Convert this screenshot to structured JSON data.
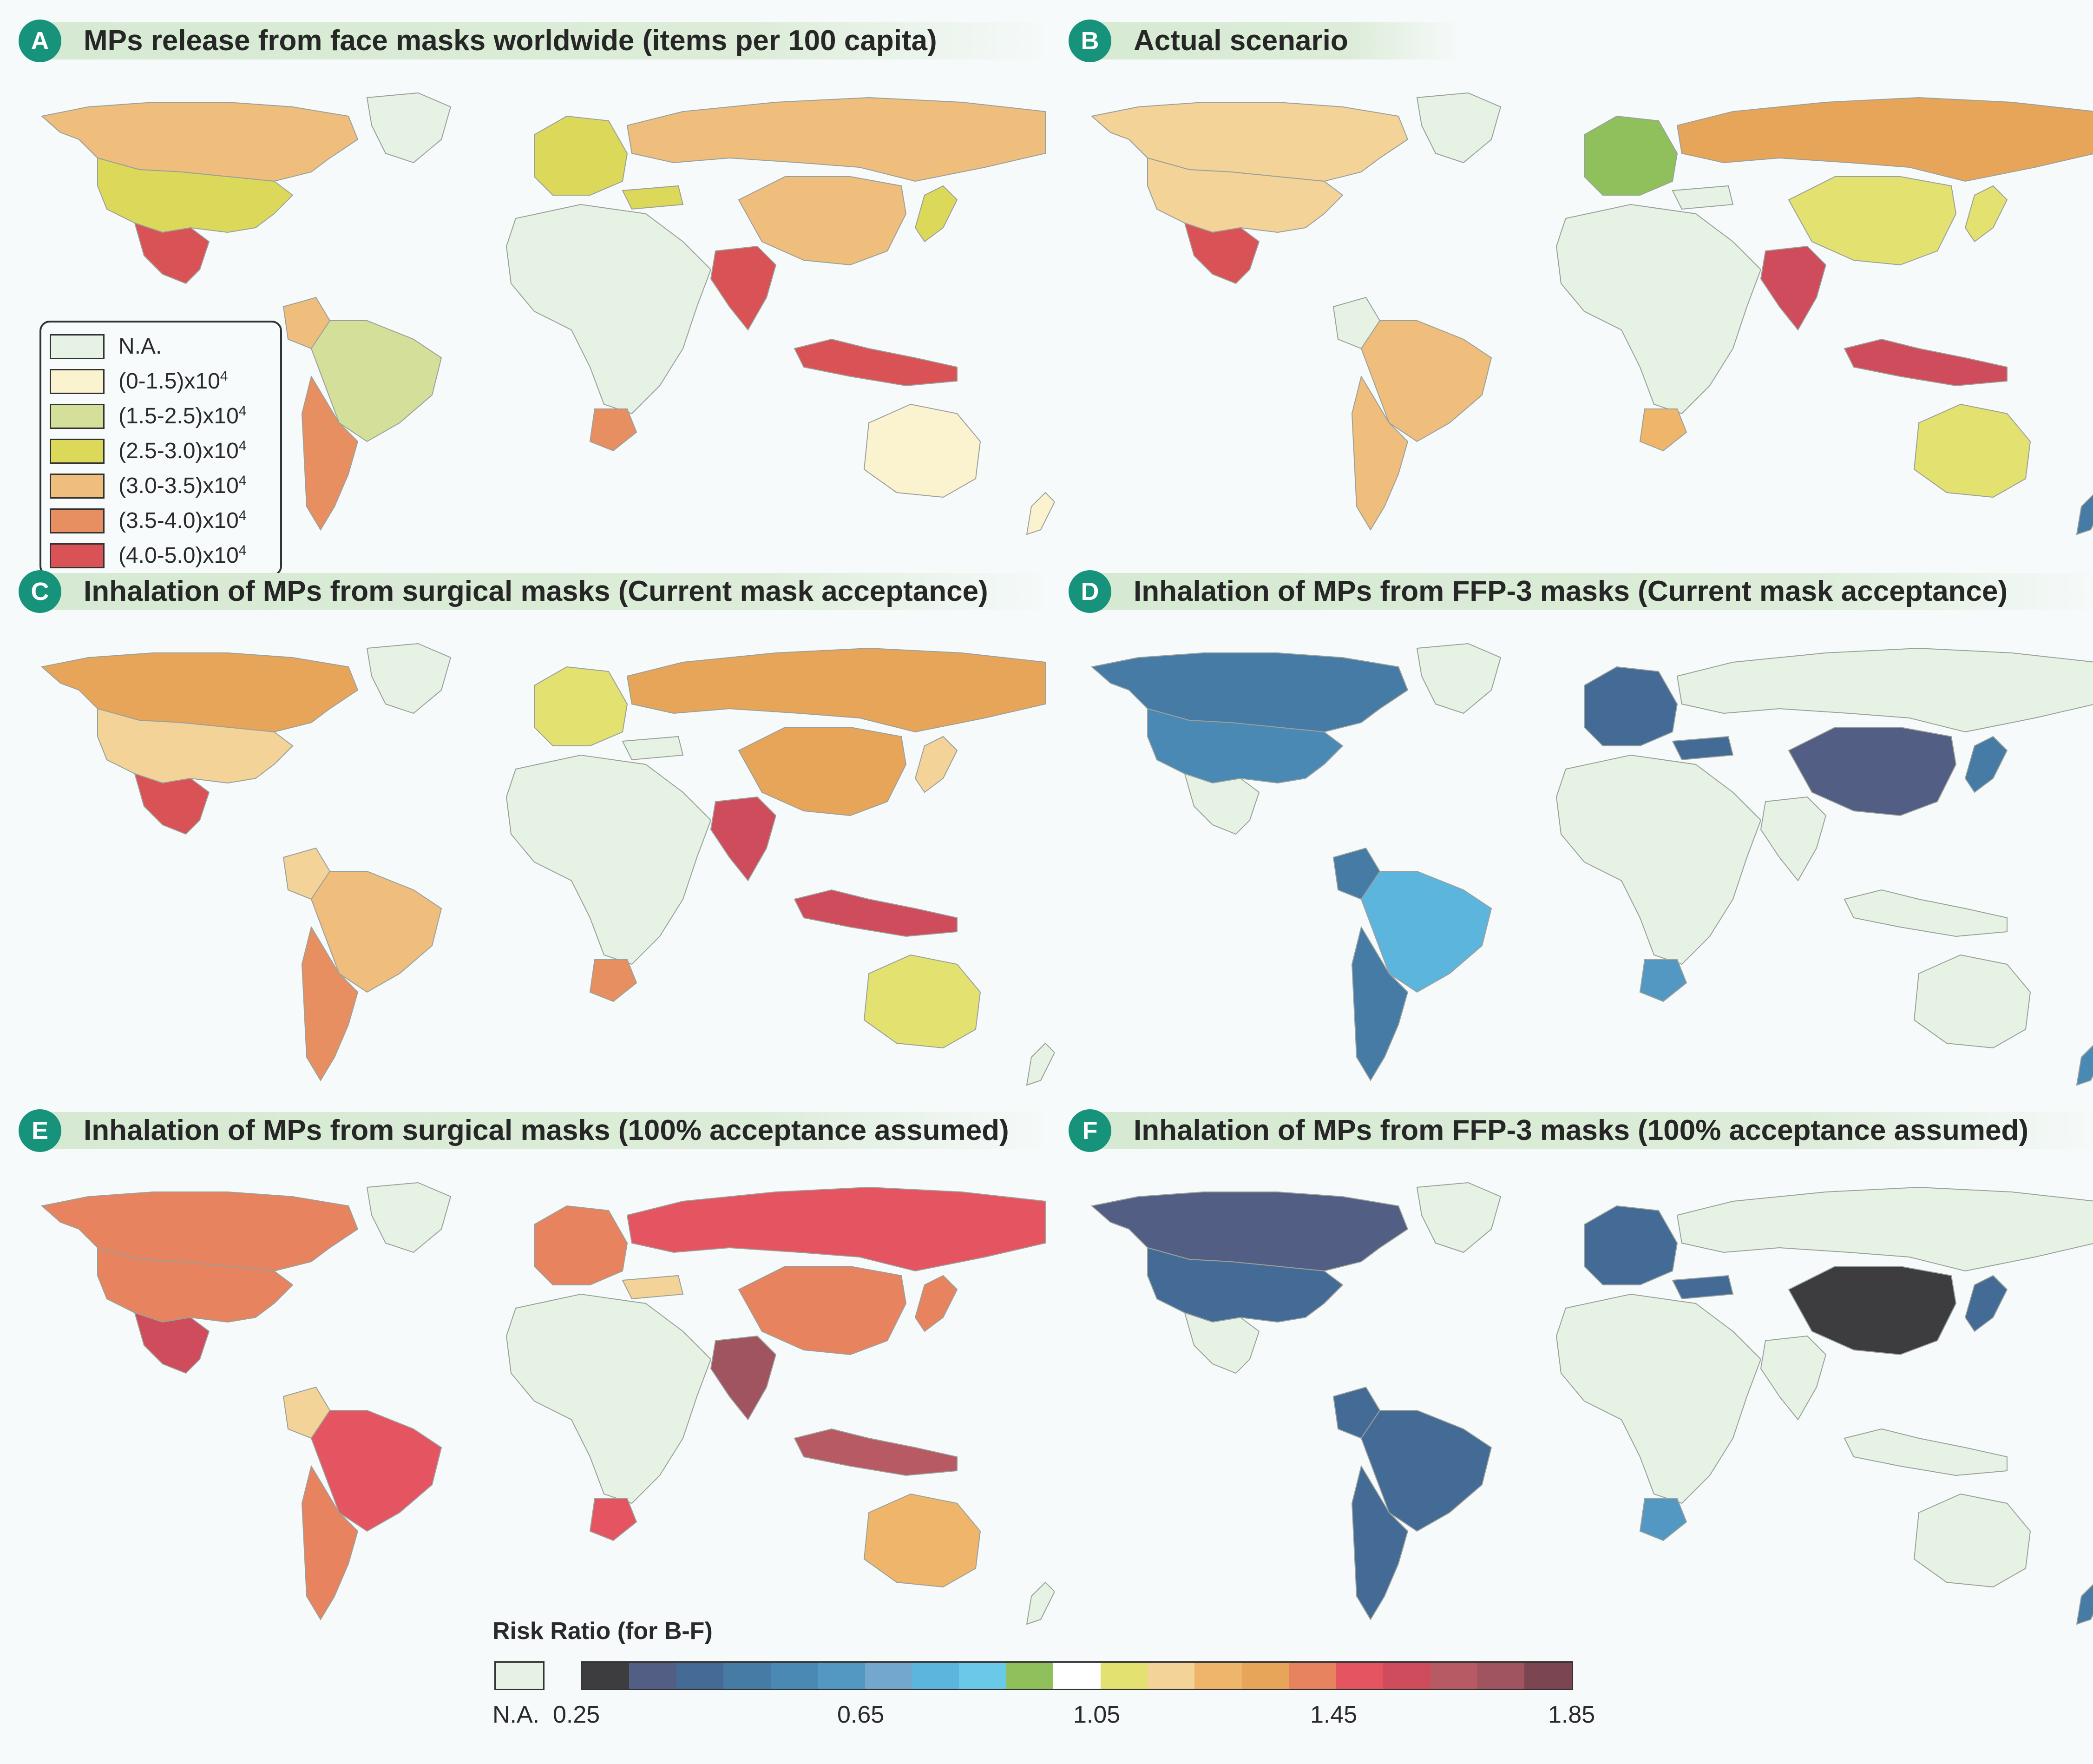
{
  "panels": [
    {
      "letter": "A",
      "title": "MPs release from face masks worldwide (items per 100 capita)"
    },
    {
      "letter": "B",
      "title": "Actual scenario"
    },
    {
      "letter": "C",
      "title": "Inhalation of MPs from surgical masks (Current mask acceptance)"
    },
    {
      "letter": "D",
      "title": "Inhalation of MPs from FFP-3 masks (Current mask acceptance)"
    },
    {
      "letter": "E",
      "title": "Inhalation of MPs from surgical masks (100% acceptance assumed)"
    },
    {
      "letter": "F",
      "title": "Inhalation of MPs from FFP-3 masks (100% acceptance assumed)"
    }
  ],
  "legend_a": {
    "items": [
      {
        "label": "N.A.",
        "color": "#e6f3e4"
      },
      {
        "label": "(0-1.5)x10",
        "exp": "4",
        "color": "#fbf3cf"
      },
      {
        "label": "(1.5-2.5)x10",
        "exp": "4",
        "color": "#d4e09a"
      },
      {
        "label": "(2.5-3.0)x10",
        "exp": "4",
        "color": "#dcd95a"
      },
      {
        "label": "(3.0-3.5)x10",
        "exp": "4",
        "color": "#efbd7c"
      },
      {
        "label": "(3.5-4.0)x10",
        "exp": "4",
        "color": "#e78f61"
      },
      {
        "label": "(4.0-5.0)x10",
        "exp": "4",
        "color": "#d95356"
      }
    ]
  },
  "risk_scale": {
    "title": "Risk Ratio (for B-F)",
    "na_label": "N.A.",
    "na_color": "#e6f3e4",
    "tick_labels": [
      "0.25",
      "0.65",
      "1.05",
      "1.45",
      "1.85"
    ],
    "colors": [
      "#3d3d3f",
      "#535e84",
      "#446b96",
      "#457ba5",
      "#4b89b5",
      "#5397c3",
      "#74a7cd",
      "#5bb5dc",
      "#6bc9e8",
      "#8fc05c",
      "#ffffff",
      "#e3e170",
      "#f3d397",
      "#efb66b",
      "#e7a55a",
      "#e7835e",
      "#e55561",
      "#cf4c5c",
      "#b85a63",
      "#a05460",
      "#7b4652"
    ]
  },
  "map_colors": {
    "A": {
      "north_america": "#efbd7c",
      "usa": "#dcd95a",
      "mexico": "#d95356",
      "south_america": "#d4e09a",
      "southern_cone": "#e78f61",
      "colombia": "#efbd7c",
      "europe": "#dcd95a",
      "russia": "#efbd7c",
      "china": "#efbd7c",
      "india": "#d95356",
      "indonesia": "#d95356",
      "australia": "#fbf3cf",
      "south_africa": "#e78f61",
      "japan": "#dcd95a",
      "new_zealand": "#fbf3cf",
      "turkey": "#dcd95a",
      "greenland": "#e6f3e4",
      "africa": "#e6f3e4"
    },
    "B": {
      "north_america": "#f3d397",
      "usa": "#f3d397",
      "mexico": "#d95356",
      "south_america": "#efbd7c",
      "southern_cone": "#efbd7c",
      "colombia": "#e6f3e4",
      "europe": "#8fc05c",
      "russia": "#e7a55a",
      "china": "#e3e170",
      "india": "#cf4c5c",
      "indonesia": "#cf4c5c",
      "australia": "#e3e170",
      "south_africa": "#efb66b",
      "japan": "#e3e170",
      "new_zealand": "#457ba5",
      "turkey": "#e6f3e4",
      "greenland": "#e6f3e4",
      "africa": "#e6f3e4"
    },
    "C": {
      "north_america": "#e7a55a",
      "usa": "#f3d397",
      "mexico": "#d95356",
      "south_america": "#efbd7c",
      "southern_cone": "#e78f61",
      "colombia": "#f3d397",
      "europe": "#e3e170",
      "russia": "#e7a55a",
      "china": "#e7a55a",
      "india": "#cf4c5c",
      "indonesia": "#cf4c5c",
      "australia": "#e3e170",
      "south_africa": "#e78f61",
      "japan": "#f3d397",
      "new_zealand": "#e6f3e4",
      "turkey": "#e6f3e4",
      "greenland": "#e6f3e4",
      "africa": "#e6f3e4"
    },
    "D": {
      "north_america": "#457ba5",
      "usa": "#4b89b5",
      "mexico": "#e6f3e4",
      "south_america": "#5bb5dc",
      "southern_cone": "#457ba5",
      "colombia": "#457ba5",
      "europe": "#446b96",
      "russia": "#e6f3e4",
      "china": "#535e84",
      "india": "#e6f3e4",
      "indonesia": "#e6f3e4",
      "australia": "#e6f3e4",
      "south_africa": "#5397c3",
      "japan": "#457ba5",
      "new_zealand": "#4b89b5",
      "turkey": "#446b96",
      "greenland": "#e6f3e4",
      "africa": "#e6f3e4"
    },
    "E": {
      "north_america": "#e7835e",
      "usa": "#e7835e",
      "mexico": "#cf4c5c",
      "south_america": "#e55561",
      "southern_cone": "#e7835e",
      "colombia": "#f3d397",
      "europe": "#e7835e",
      "russia": "#e55561",
      "china": "#e7835e",
      "india": "#a05460",
      "indonesia": "#b85a63",
      "australia": "#efb66b",
      "south_africa": "#e55561",
      "japan": "#e7835e",
      "new_zealand": "#e6f3e4",
      "turkey": "#f3d397",
      "greenland": "#e6f3e4",
      "africa": "#e6f3e4"
    },
    "F": {
      "north_america": "#535e84",
      "usa": "#446b96",
      "mexico": "#e6f3e4",
      "south_america": "#446b96",
      "southern_cone": "#446b96",
      "colombia": "#446b96",
      "europe": "#446b96",
      "russia": "#e6f3e4",
      "china": "#3d3d3f",
      "india": "#e6f3e4",
      "indonesia": "#e6f3e4",
      "australia": "#e6f3e4",
      "south_africa": "#5397c3",
      "japan": "#446b96",
      "new_zealand": "#457ba5",
      "turkey": "#446b96",
      "greenland": "#e6f3e4",
      "africa": "#e6f3e4"
    }
  }
}
